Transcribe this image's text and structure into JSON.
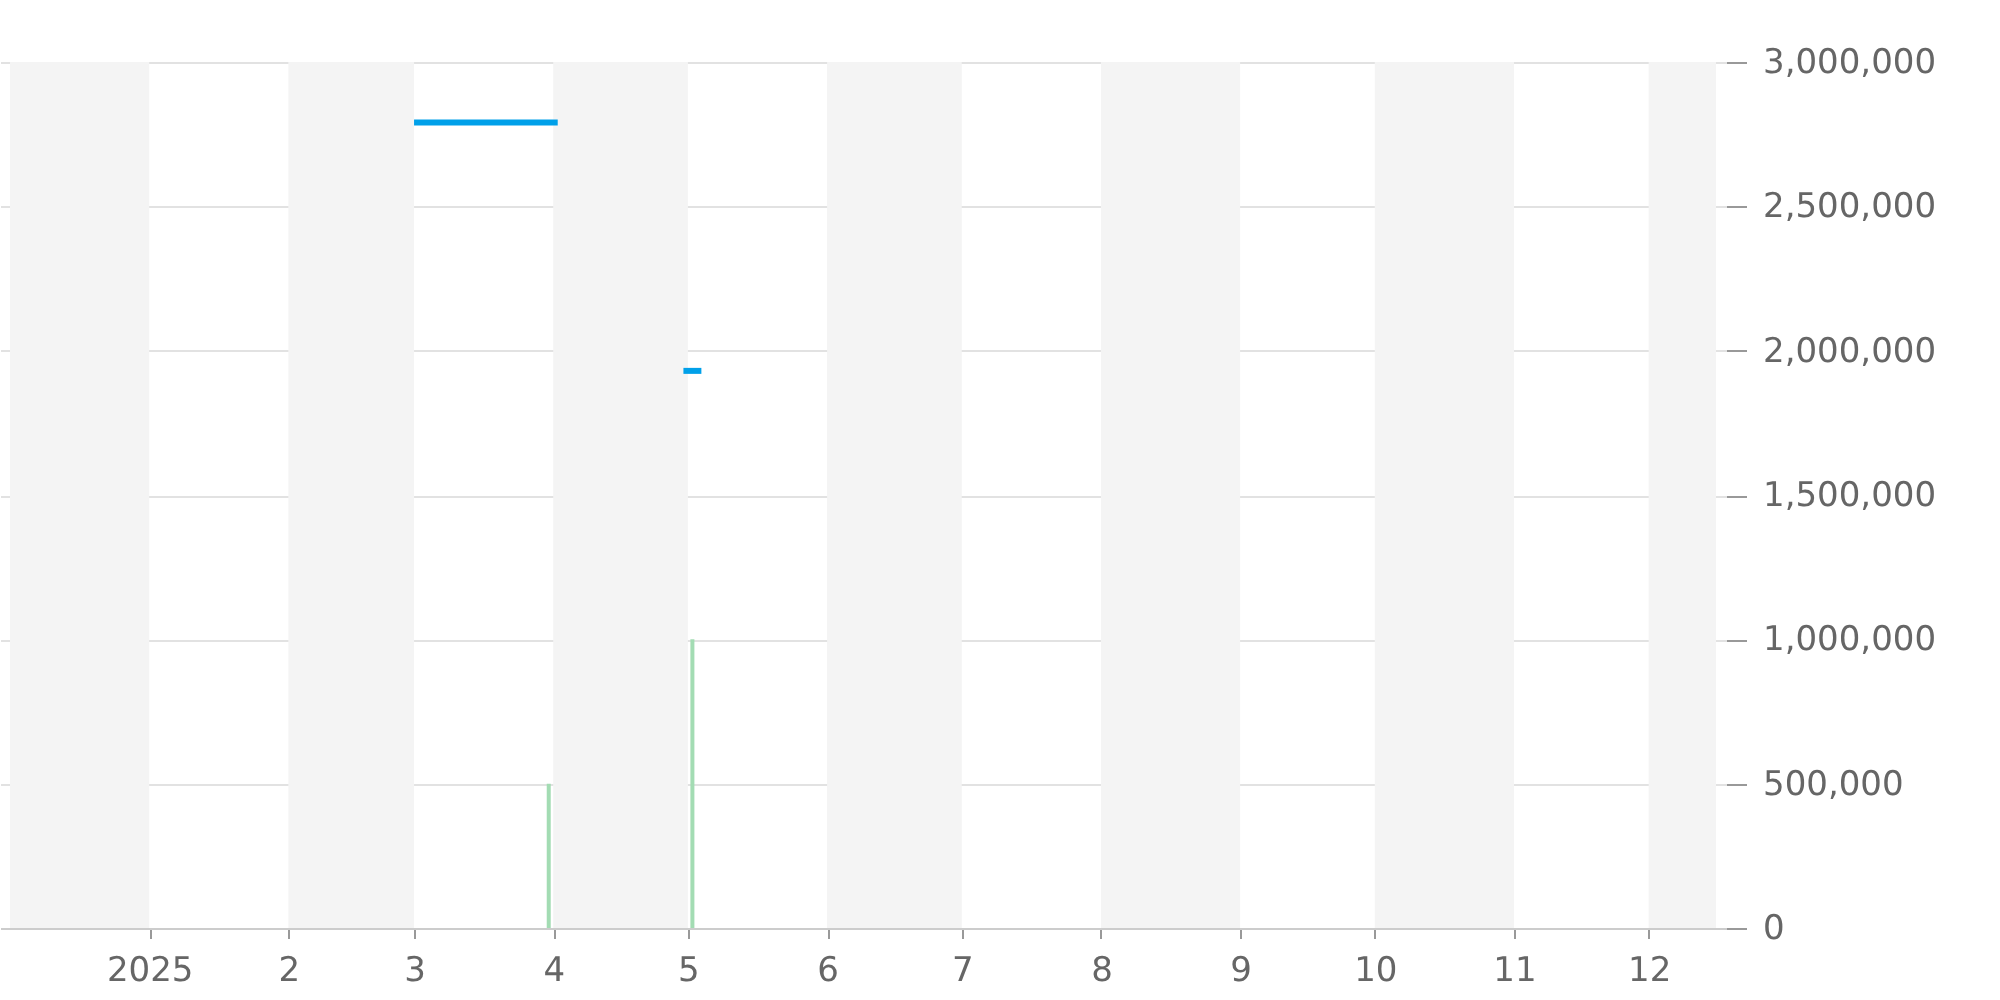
{
  "chart_data": {
    "type": "line",
    "series": [
      {
        "color": "#00a0e9",
        "x": [
          "2025-03-01",
          "2025-04-02",
          "2025-04-15",
          "2025-04-30",
          "2025-05-04"
        ],
        "values": [
          2790000,
          2790000,
          null,
          1930000,
          1930000
        ]
      },
      {
        "type": "bar",
        "color": "#a3dcb3",
        "x": [
          "2025-03-31",
          "2025-05-02"
        ],
        "values": [
          500000,
          1000000
        ]
      }
    ],
    "xlim": [
      "2024-12-01",
      "2025-12-16"
    ],
    "xticks": [
      {
        "value": "2025-01-01",
        "label": "2025"
      },
      {
        "value": "2025-02-01",
        "label": "2"
      },
      {
        "value": "2025-03-01",
        "label": "3"
      },
      {
        "value": "2025-04-01",
        "label": "4"
      },
      {
        "value": "2025-05-01",
        "label": "5"
      },
      {
        "value": "2025-06-01",
        "label": "6"
      },
      {
        "value": "2025-07-01",
        "label": "7"
      },
      {
        "value": "2025-08-01",
        "label": "8"
      },
      {
        "value": "2025-09-01",
        "label": "9"
      },
      {
        "value": "2025-10-01",
        "label": "10"
      },
      {
        "value": "2025-11-01",
        "label": "11"
      },
      {
        "value": "2025-12-01",
        "label": "12"
      }
    ],
    "ylim": [
      0,
      3000000
    ],
    "yticks": [
      {
        "value": 0,
        "label": "0"
      },
      {
        "value": 500000,
        "label": "500,000"
      },
      {
        "value": 1000000,
        "label": "1,000,000"
      },
      {
        "value": 1500000,
        "label": "1,500,000"
      },
      {
        "value": 2000000,
        "label": "2,000,000"
      },
      {
        "value": 2500000,
        "label": "2,500,000"
      },
      {
        "value": 3000000,
        "label": "3,000,000"
      }
    ],
    "bands": [
      {
        "axis": "x",
        "from": "2024-12-01",
        "to": "2025-01-01",
        "color": "#f4f4f4"
      },
      {
        "axis": "x",
        "from": "2025-02-01",
        "to": "2025-03-01",
        "color": "#f4f4f4"
      },
      {
        "axis": "x",
        "from": "2025-04-01",
        "to": "2025-05-01",
        "color": "#f4f4f4"
      },
      {
        "axis": "x",
        "from": "2025-06-01",
        "to": "2025-07-01",
        "color": "#f4f4f4"
      },
      {
        "axis": "x",
        "from": "2025-08-01",
        "to": "2025-09-01",
        "color": "#f4f4f4"
      },
      {
        "axis": "x",
        "from": "2025-10-01",
        "to": "2025-11-01",
        "color": "#f4f4f4"
      },
      {
        "axis": "x",
        "from": "2025-12-01",
        "to": "2025-12-16",
        "color": "#f4f4f4"
      }
    ],
    "grid": "y",
    "marker": "none",
    "line_style": "solid"
  }
}
